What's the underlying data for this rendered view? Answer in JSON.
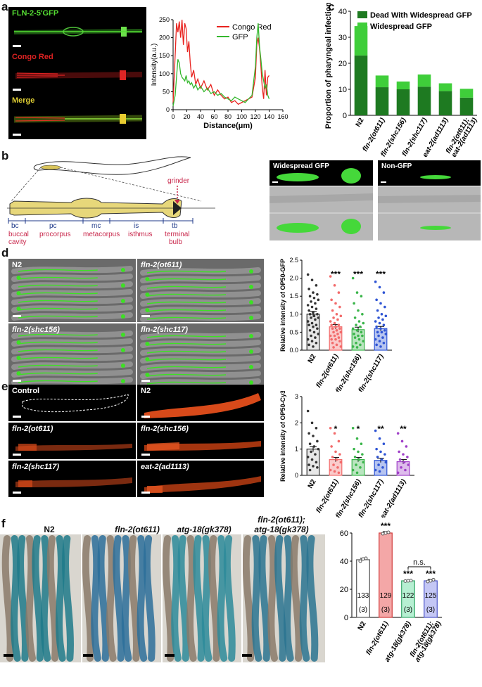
{
  "panels": {
    "a": "a",
    "b": "b",
    "c": "c",
    "d": "d",
    "e": "e",
    "f": "f"
  },
  "panel_a": {
    "images": [
      "FLN-2-5'GFP",
      "Congo Red",
      "Merge"
    ],
    "colors": {
      "gfp": "#55dd33",
      "congo": "#dd2222",
      "merge": "#ddcc33"
    }
  },
  "panel_b": {
    "grinder": "grinder",
    "segments": [
      {
        "abbr": "bc",
        "name": "buccal\ncavity"
      },
      {
        "abbr": "pc",
        "name": "procorpus"
      },
      {
        "abbr": "mc",
        "name": "metacorpus"
      },
      {
        "abbr": "is",
        "name": "isthmus"
      },
      {
        "abbr": "tb",
        "name": "terminal\nbulb"
      }
    ],
    "images": [
      "Widespread GFP",
      "Non-GFP"
    ]
  },
  "panel_d_images": [
    "N2",
    "fln-2(ot611)",
    "fln-2(shc156)",
    "fln-2(shc117)"
  ],
  "panel_e_images": [
    "Control",
    "N2",
    "fln-2(ot611)",
    "fln-2(shc156)",
    "fln-2(shc117)",
    "eat-2(ad1113)"
  ],
  "panel_f_images": [
    "N2",
    "fln-2(ot611)",
    "atg-18(gk378)",
    "fln-2(ot611);\natg-18(gk378)"
  ],
  "chart_data": [
    {
      "id": "a-line",
      "type": "line",
      "xlabel": "Distance(μm)",
      "ylabel": "Intensity(a.u.)",
      "xlim": [
        0,
        160
      ],
      "ylim": [
        0,
        250
      ],
      "xticks": [
        0,
        20,
        40,
        60,
        80,
        100,
        120,
        140,
        160
      ],
      "yticks": [
        0,
        50,
        100,
        150,
        200,
        250
      ],
      "legend": "top-right",
      "series": [
        {
          "name": "Congo Red",
          "color": "#e8231f",
          "x": [
            0,
            3,
            5,
            7,
            9,
            11,
            13,
            15,
            17,
            19,
            21,
            23,
            25,
            27,
            30,
            33,
            36,
            40,
            45,
            50,
            55,
            60,
            65,
            70,
            75,
            80,
            85,
            90,
            95,
            100,
            105,
            110,
            115,
            120,
            122,
            124,
            126,
            128,
            130,
            132,
            134,
            136,
            138,
            140
          ],
          "y": [
            20,
            150,
            240,
            215,
            245,
            200,
            250,
            180,
            240,
            225,
            160,
            190,
            130,
            90,
            110,
            70,
            85,
            60,
            80,
            55,
            70,
            40,
            55,
            40,
            30,
            35,
            20,
            25,
            15,
            20,
            25,
            30,
            35,
            90,
            180,
            200,
            170,
            120,
            60,
            30,
            110,
            40,
            90,
            95
          ]
        },
        {
          "name": "GFP",
          "color": "#35b82e",
          "x": [
            0,
            3,
            5,
            7,
            9,
            11,
            13,
            15,
            17,
            19,
            21,
            23,
            25,
            27,
            30,
            33,
            36,
            40,
            45,
            50,
            55,
            60,
            65,
            70,
            75,
            80,
            85,
            90,
            95,
            100,
            105,
            110,
            115,
            120,
            122,
            124,
            126,
            128,
            130,
            132,
            134,
            136,
            138,
            140
          ],
          "y": [
            10,
            40,
            90,
            140,
            130,
            100,
            90,
            85,
            80,
            95,
            75,
            80,
            70,
            75,
            60,
            70,
            55,
            65,
            50,
            60,
            45,
            50,
            40,
            45,
            35,
            30,
            25,
            35,
            30,
            25,
            20,
            30,
            40,
            120,
            200,
            240,
            175,
            140,
            100,
            80,
            60,
            70,
            40,
            30
          ]
        }
      ]
    },
    {
      "id": "c-bar",
      "type": "bar",
      "ylabel": "Proportion of pharyngeal infections",
      "ylim": [
        0,
        40
      ],
      "yticks": [
        0,
        10,
        20,
        30,
        40
      ],
      "legend": "top-right",
      "categories": [
        "N2",
        "fln-2(ot611)",
        "fln-2(shc156)",
        "fln-2(shc117)",
        "eat-2(ad1113)",
        "fln-2(ot611);\neat-2(ad1113)"
      ],
      "series": [
        {
          "name": "Dead With Widespread GFP",
          "color": "#1e7a21",
          "values": [
            23,
            10.8,
            10,
            11,
            9.3,
            6.8
          ]
        },
        {
          "name": "Widespread GFP",
          "color": "#3fce3a",
          "values": [
            11.3,
            4.5,
            3,
            4.7,
            3,
            3.4
          ]
        }
      ]
    },
    {
      "id": "d-scatter",
      "type": "bar",
      "ylabel": "Relative intensity of OP50-GFP",
      "ylim": [
        0,
        2.5
      ],
      "yticks": [
        0,
        0.5,
        1,
        1.5,
        2,
        2.5
      ],
      "ytick_labels": [
        "0.0",
        "0.5",
        "1.0",
        "1.5",
        "2.0",
        "2.5"
      ],
      "categories": [
        "N2",
        "fln-2(ot611)",
        "fln-2(shc156)",
        "fln-2(shc117)"
      ],
      "values": [
        1.0,
        0.65,
        0.57,
        0.6
      ],
      "errors": [
        0.08,
        0.06,
        0.07,
        0.06
      ],
      "significance": [
        "",
        "***",
        "***",
        "***"
      ],
      "colors": [
        "#333333",
        "#f26b6b",
        "#3ab54a",
        "#2f55d4"
      ],
      "points": [
        [
          2.1,
          1.95,
          1.8,
          1.7,
          1.6,
          1.55,
          1.5,
          1.45,
          1.4,
          1.35,
          1.3,
          1.25,
          1.2,
          1.15,
          1.1,
          1.05,
          1.0,
          1.0,
          0.95,
          0.9,
          0.9,
          0.85,
          0.8,
          0.75,
          0.7,
          0.7,
          0.65,
          0.6,
          0.55,
          0.5,
          0.45,
          0.4,
          0.35,
          0.3,
          0.25,
          0.2,
          0.15,
          0.1
        ],
        [
          2.05,
          1.8,
          1.6,
          1.4,
          1.3,
          1.2,
          1.1,
          1.0,
          0.95,
          0.9,
          0.85,
          0.8,
          0.75,
          0.7,
          0.7,
          0.65,
          0.6,
          0.6,
          0.55,
          0.5,
          0.5,
          0.45,
          0.4,
          0.4,
          0.35,
          0.3,
          0.3,
          0.25,
          0.2,
          0.15,
          0.1,
          0.08
        ],
        [
          2.0,
          1.6,
          1.5,
          1.3,
          1.1,
          1.0,
          0.9,
          0.8,
          0.75,
          0.7,
          0.65,
          0.6,
          0.55,
          0.5,
          0.45,
          0.4,
          0.4,
          0.35,
          0.3,
          0.25,
          0.2,
          0.15,
          0.1,
          0.08
        ],
        [
          1.9,
          1.75,
          1.6,
          1.4,
          1.3,
          1.2,
          1.1,
          1.0,
          0.95,
          0.9,
          0.85,
          0.8,
          0.75,
          0.7,
          0.65,
          0.6,
          0.55,
          0.5,
          0.5,
          0.45,
          0.4,
          0.35,
          0.3,
          0.25,
          0.2,
          0.15,
          0.1
        ]
      ]
    },
    {
      "id": "e-scatter",
      "type": "bar",
      "ylabel": "Relative intensity of OP50-Cy3",
      "ylim": [
        0,
        3
      ],
      "yticks": [
        0,
        1,
        2,
        3
      ],
      "categories": [
        "N2",
        "fln-2(ot611)",
        "fln-2(shc156)",
        "fln-2(shc117)",
        "eat-2(ad1113)"
      ],
      "values": [
        1.0,
        0.6,
        0.6,
        0.57,
        0.52
      ],
      "errors": [
        0.1,
        0.08,
        0.08,
        0.08,
        0.08
      ],
      "significance": [
        "",
        "*",
        "*",
        "**",
        "**"
      ],
      "colors": [
        "#333333",
        "#f26b6b",
        "#3ab54a",
        "#2f55d4",
        "#a040c8"
      ],
      "points": [
        [
          2.45,
          2.0,
          1.8,
          1.6,
          1.5,
          1.3,
          1.2,
          1.1,
          1.0,
          0.9,
          0.8,
          0.7,
          0.6,
          0.5,
          0.4,
          0.35,
          0.3,
          0.2
        ],
        [
          1.8,
          1.6,
          1.3,
          1.1,
          0.9,
          0.8,
          0.7,
          0.6,
          0.5,
          0.4,
          0.3,
          0.2,
          0.15,
          0.1
        ],
        [
          1.8,
          1.4,
          1.2,
          1.0,
          0.9,
          0.8,
          0.7,
          0.6,
          0.5,
          0.4,
          0.3,
          0.2,
          0.1
        ],
        [
          1.7,
          1.4,
          1.2,
          1.0,
          0.9,
          0.8,
          0.7,
          0.6,
          0.5,
          0.4,
          0.3,
          0.2,
          0.15
        ],
        [
          1.6,
          1.3,
          1.1,
          0.9,
          0.8,
          0.7,
          0.6,
          0.5,
          0.4,
          0.3,
          0.2,
          0.1
        ]
      ]
    },
    {
      "id": "f-bar",
      "type": "bar",
      "ylim": [
        0,
        60
      ],
      "yticks": [
        0,
        20,
        40,
        60
      ],
      "categories": [
        "N2",
        "fln-2(ot611)",
        "atg-18(gk378)",
        "fln-2(ot611);\natg-18(gk378)"
      ],
      "values": [
        41,
        60,
        26,
        26
      ],
      "errors": [
        1,
        1,
        0.5,
        1
      ],
      "significance": [
        "",
        "***",
        "***",
        "***"
      ],
      "ns_label": "n.s.",
      "counts": [
        "133\n(3)",
        "129\n(3)",
        "122\n(3)",
        "125\n(3)"
      ],
      "colors": [
        "#ffffff",
        "#f4a7a7",
        "#b6efd2",
        "#c4c7f5"
      ],
      "edges": [
        "#555555",
        "#d23b3b",
        "#37a86a",
        "#4c55c8"
      ],
      "points": [
        [
          40,
          41.5,
          42
        ],
        [
          59.5,
          60,
          60.5
        ],
        [
          25.8,
          26,
          26.2
        ],
        [
          25.5,
          26,
          26.8
        ]
      ]
    }
  ]
}
